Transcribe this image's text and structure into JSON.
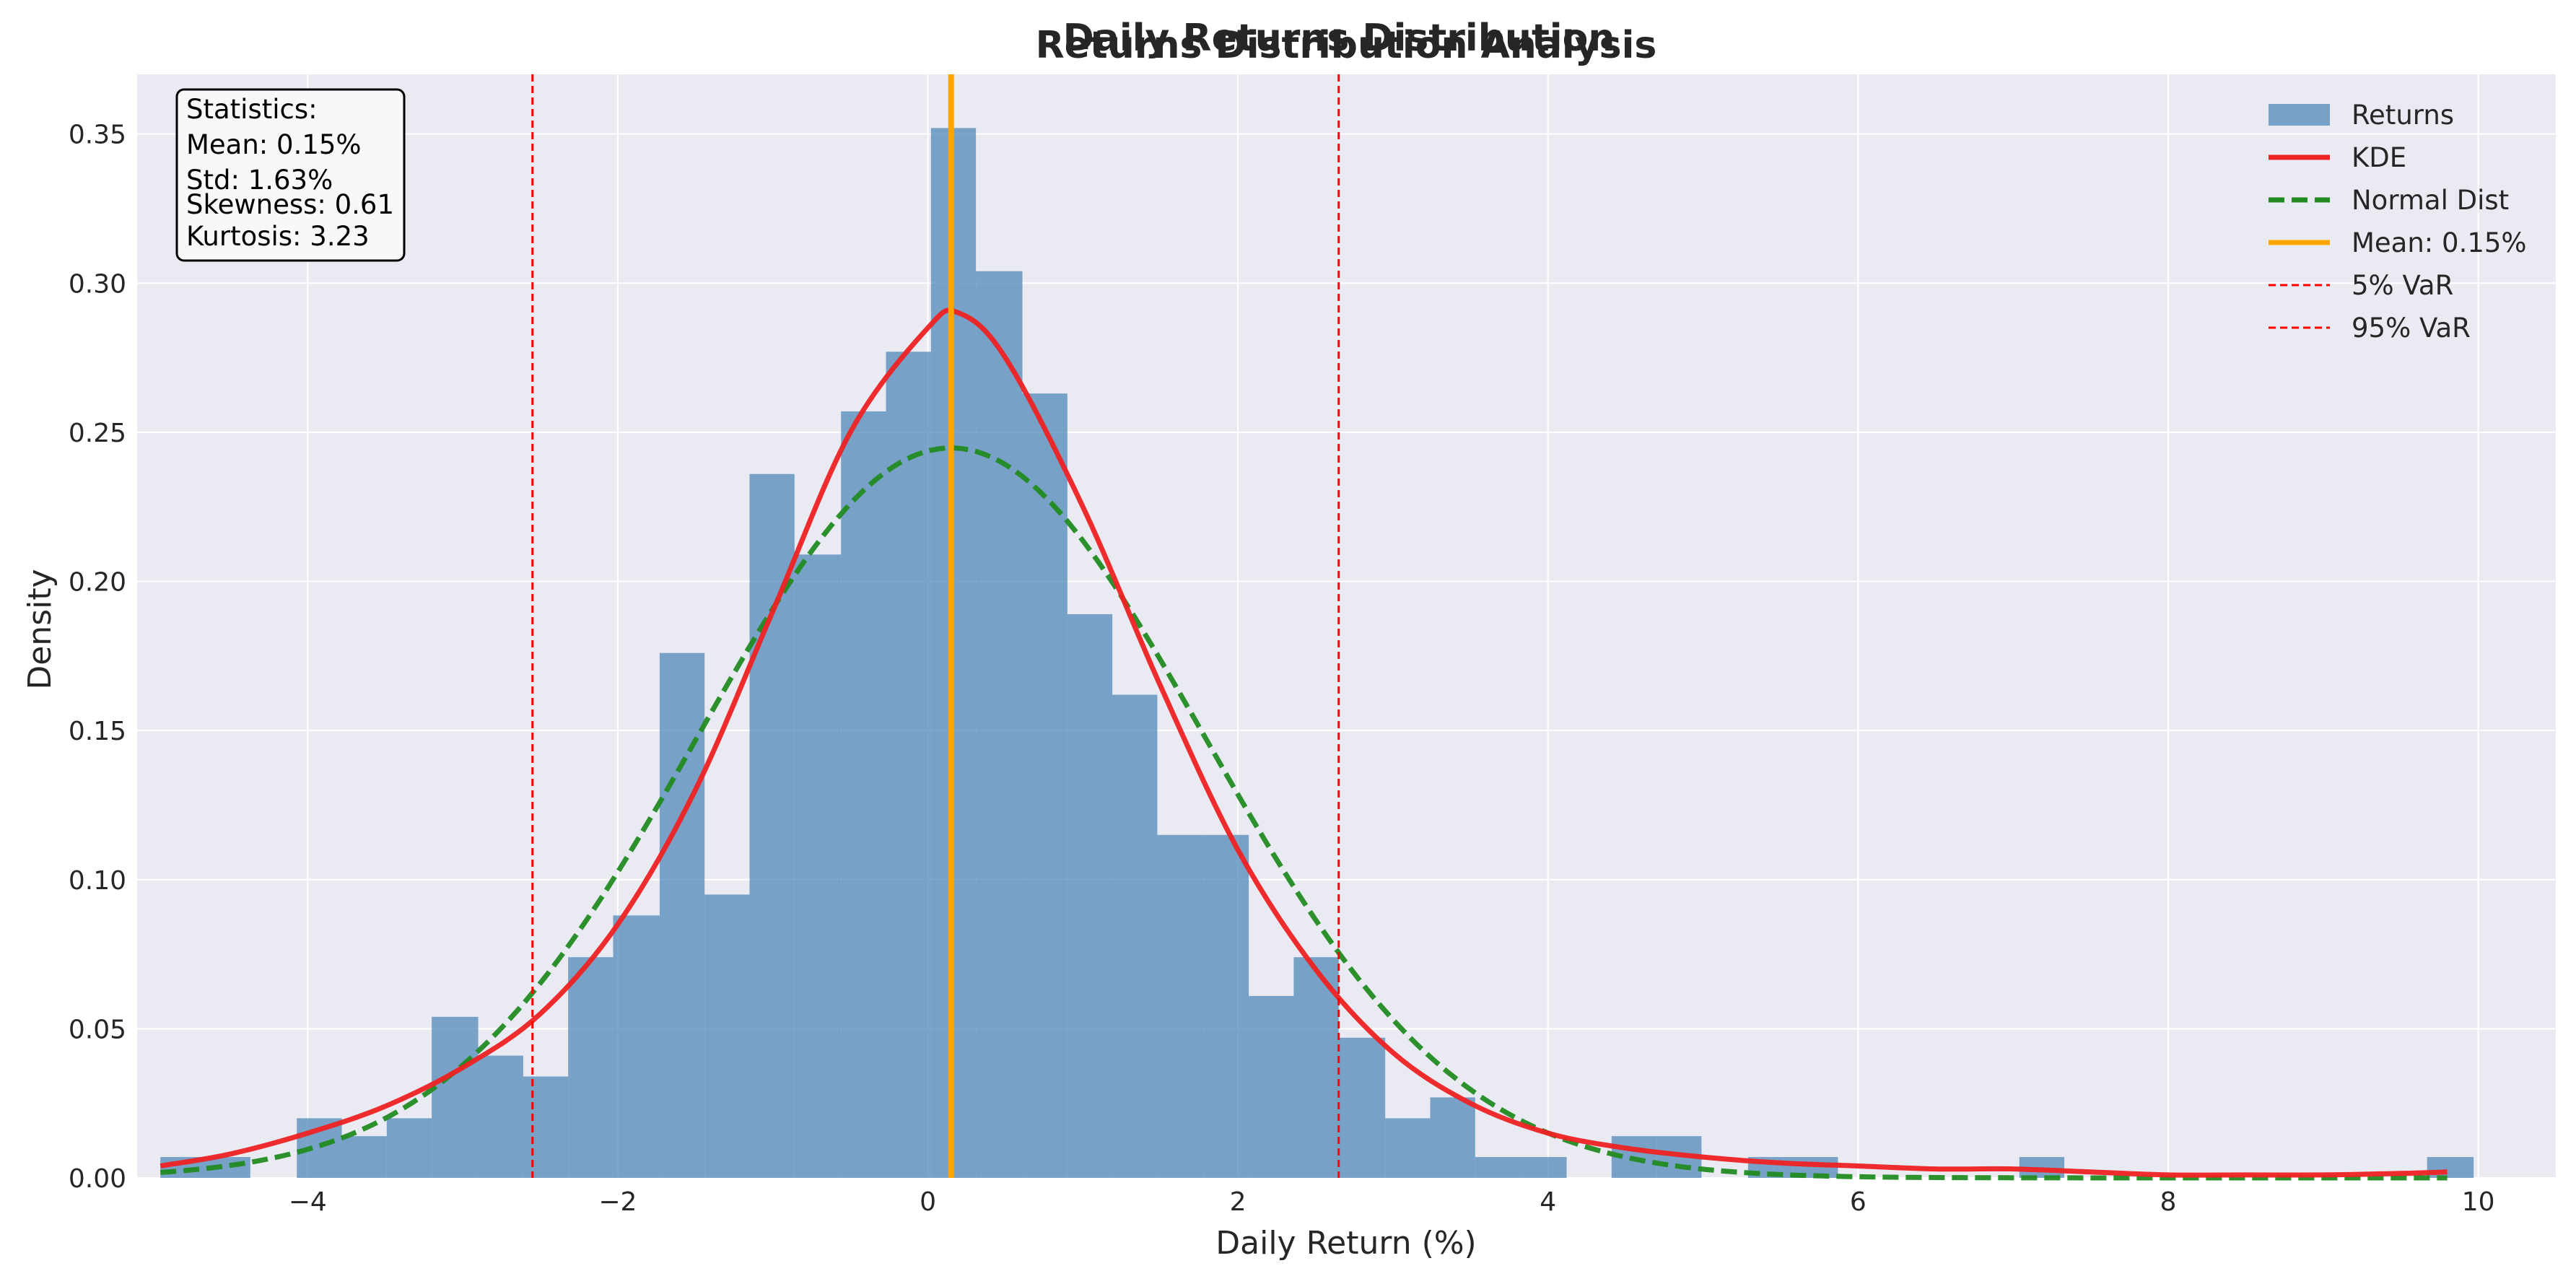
{
  "chart_data": {
    "type": "bar",
    "suptitle": "Daily Returns Distribution",
    "title": "Returns Distribution Analysis",
    "xlabel": "Daily Return (%)",
    "ylabel": "Density",
    "xlim": [
      -5.1,
      10.5
    ],
    "ylim": [
      0,
      0.37
    ],
    "x_ticks": [
      -4,
      -2,
      0,
      2,
      4,
      6,
      8,
      10
    ],
    "x_tick_labels": [
      "−4",
      "−2",
      "0",
      "2",
      "4",
      "6",
      "8",
      "10"
    ],
    "y_ticks": [
      0,
      0.05,
      0.1,
      0.15,
      0.2,
      0.25,
      0.3,
      0.35
    ],
    "y_tick_labels": [
      "0.00",
      "0.05",
      "0.10",
      "0.15",
      "0.20",
      "0.25",
      "0.30",
      "0.35"
    ],
    "grid": true,
    "legend_position": "top-right",
    "colors": {
      "background": "#EAEAF2",
      "grid": "#FFFFFF",
      "bars": "#4682B4",
      "kde": "#EE2222",
      "normal": "#228B22",
      "mean": "#FFA500",
      "var": "#FF0000"
    },
    "histogram": {
      "name": "Returns",
      "bin_edges": [
        -4.95,
        -4.66,
        -4.37,
        -4.07,
        -3.78,
        -3.49,
        -3.2,
        -2.9,
        -2.61,
        -2.32,
        -2.03,
        -1.73,
        -1.44,
        -1.15,
        -0.86,
        -0.56,
        -0.27,
        0.02,
        0.31,
        0.61,
        0.9,
        1.19,
        1.48,
        1.78,
        2.07,
        2.36,
        2.65,
        2.95,
        3.24,
        3.53,
        3.82,
        4.12,
        4.41,
        4.7,
        4.99,
        5.29,
        5.58,
        5.87,
        6.16,
        6.46,
        6.75,
        7.04,
        7.33,
        7.63,
        7.92,
        8.21,
        8.5,
        8.8,
        9.09,
        9.38,
        9.67,
        9.97
      ],
      "densities": [
        0.007,
        0.007,
        0.0,
        0.02,
        0.014,
        0.02,
        0.054,
        0.041,
        0.034,
        0.074,
        0.088,
        0.176,
        0.095,
        0.236,
        0.209,
        0.257,
        0.277,
        0.352,
        0.304,
        0.263,
        0.189,
        0.162,
        0.115,
        0.115,
        0.061,
        0.074,
        0.047,
        0.02,
        0.027,
        0.007,
        0.007,
        0.0,
        0.014,
        0.014,
        0.0,
        0.007,
        0.007,
        0.0,
        0.0,
        0.0,
        0.0,
        0.007,
        0.0,
        0.0,
        0.0,
        0.0,
        0.0,
        0.0,
        0.0,
        0.0,
        0.007
      ]
    },
    "kde": {
      "name": "KDE",
      "x": [
        -4.95,
        -4.5,
        -4.0,
        -3.5,
        -3.0,
        -2.5,
        -2.0,
        -1.5,
        -1.0,
        -0.5,
        0.0,
        0.2,
        0.5,
        1.0,
        1.5,
        2.0,
        2.5,
        3.0,
        3.5,
        4.0,
        4.5,
        5.0,
        5.5,
        6.0,
        6.5,
        7.0,
        7.5,
        8.0,
        8.5,
        9.0,
        9.5,
        9.8
      ],
      "y": [
        0.004,
        0.008,
        0.015,
        0.024,
        0.037,
        0.055,
        0.085,
        0.13,
        0.19,
        0.25,
        0.285,
        0.29,
        0.275,
        0.225,
        0.165,
        0.11,
        0.07,
        0.042,
        0.025,
        0.015,
        0.01,
        0.007,
        0.005,
        0.004,
        0.003,
        0.003,
        0.002,
        0.001,
        0.001,
        0.001,
        0.0015,
        0.002
      ]
    },
    "normal": {
      "name": "Normal Dist",
      "mean": 0.15,
      "std": 1.63,
      "x_range": [
        -4.95,
        9.8
      ]
    },
    "lines": [
      {
        "name": "Mean: 0.15%",
        "x": 0.15
      },
      {
        "name": "5% VaR",
        "x": -2.55
      },
      {
        "name": "95% VaR",
        "x": 2.65
      }
    ],
    "legend": [
      "Returns",
      "KDE",
      "Normal Dist",
      "Mean: 0.15%",
      "5% VaR",
      "95% VaR"
    ],
    "stats_box": [
      "Statistics:",
      "Mean: 0.15%",
      "Std: 1.63%",
      "Skewness: 0.61",
      "Kurtosis: 3.23"
    ]
  }
}
